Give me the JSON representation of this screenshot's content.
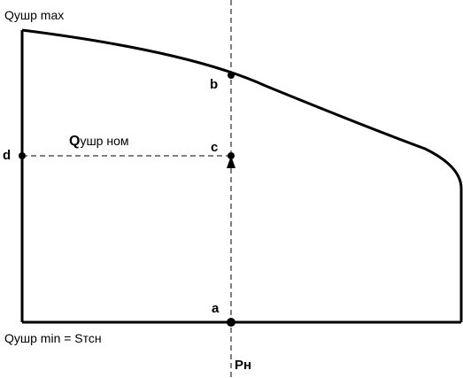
{
  "labels": {
    "q_max": "Qушр max",
    "q_min": "Qушр min = Sтсн",
    "q_nom_letter": "Q",
    "q_nom_rest": "ушр ном",
    "point_a": "a",
    "point_b": "b",
    "point_c": "c",
    "point_d": "d",
    "p_n": "Pн"
  },
  "colors": {
    "line": "#000000",
    "background": "#ffffff"
  }
}
